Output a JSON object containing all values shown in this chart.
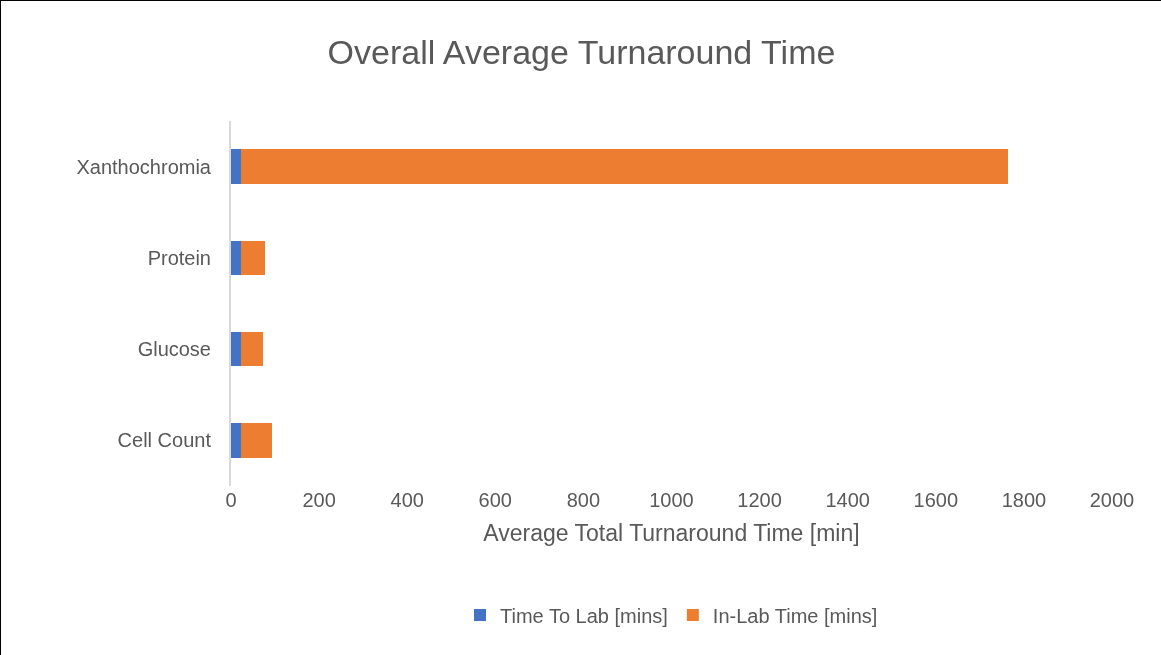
{
  "chart_data": {
    "type": "bar",
    "orientation": "horizontal",
    "stacked": true,
    "title": "Overall Average Turnaround Time",
    "xlabel": "Average Total Turnaround Time [min]",
    "categories": [
      "Xanthochromia",
      "Protein",
      "Glucose",
      "Cell Count"
    ],
    "series": [
      {
        "name": "Time To Lab [mins]",
        "color": "#4472c4",
        "values": [
          22,
          22,
          22,
          22
        ]
      },
      {
        "name": "In-Lab Time [mins]",
        "color": "#ed7d31",
        "values": [
          1743,
          56,
          51,
          72
        ]
      }
    ],
    "xlim": [
      0,
      2000
    ],
    "xticks": [
      0,
      200,
      400,
      600,
      800,
      1000,
      1200,
      1400,
      1600,
      1800,
      2000
    ],
    "grid": false,
    "legend": "bottom"
  }
}
